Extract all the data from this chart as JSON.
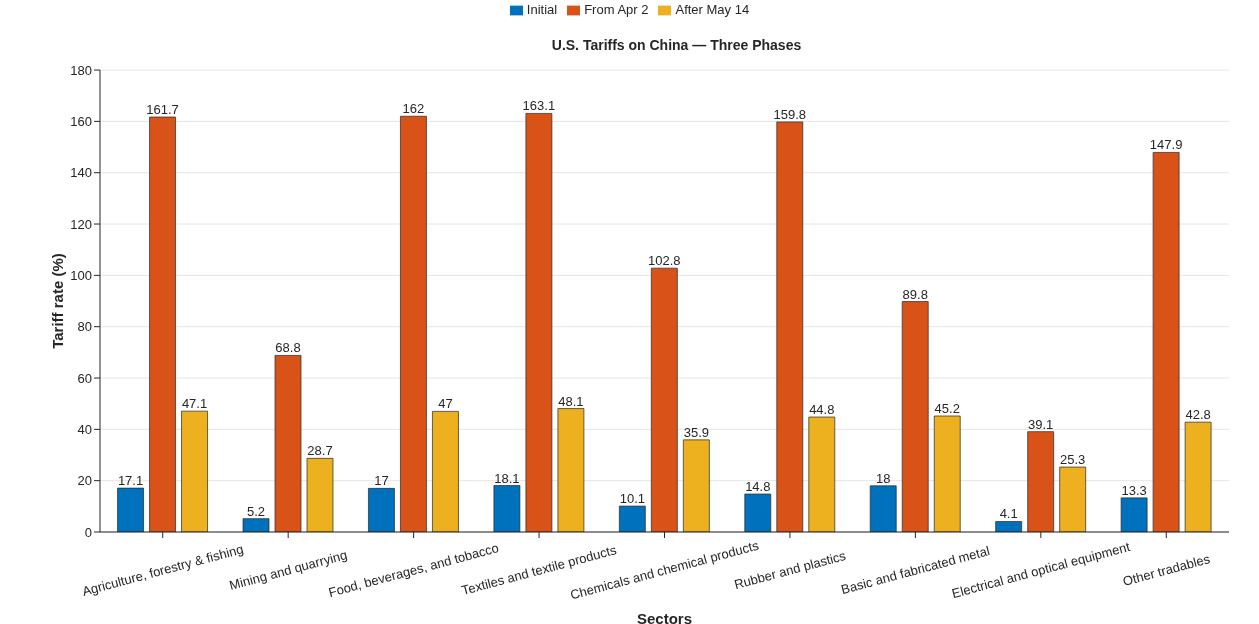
{
  "chart_data": {
    "type": "bar",
    "title": "U.S. Tariffs on China — Three Phases",
    "xlabel": "Sectors",
    "ylabel": "Tariff rate (%)",
    "categories": [
      "Agriculture, forestry & fishing",
      "Mining and quarrying",
      "Food, beverages, and tobacco",
      "Textiles and textile products",
      "Chemicals and chemical products",
      "Rubber and plastics",
      "Basic and fabricated metal",
      "Electrical and optical equipment",
      "Other tradables"
    ],
    "series": [
      {
        "name": "Initial",
        "color": "#0072bd",
        "values": [
          17.1,
          5.2,
          17,
          18.1,
          10.1,
          14.8,
          18,
          4.1,
          13.3
        ]
      },
      {
        "name": "From Apr 2",
        "color": "#d95319",
        "values": [
          161.7,
          68.8,
          162,
          163.1,
          102.8,
          159.8,
          89.8,
          39.1,
          147.9
        ]
      },
      {
        "name": "After May 14",
        "color": "#edb120",
        "values": [
          47.1,
          28.7,
          47,
          48.1,
          35.9,
          44.8,
          45.2,
          25.3,
          42.8
        ]
      }
    ],
    "ylim": [
      0,
      180
    ],
    "yticks": [
      0,
      20,
      40,
      60,
      80,
      100,
      120,
      140,
      160,
      180
    ],
    "grid": "y",
    "legend": "top",
    "data_labels": true
  }
}
